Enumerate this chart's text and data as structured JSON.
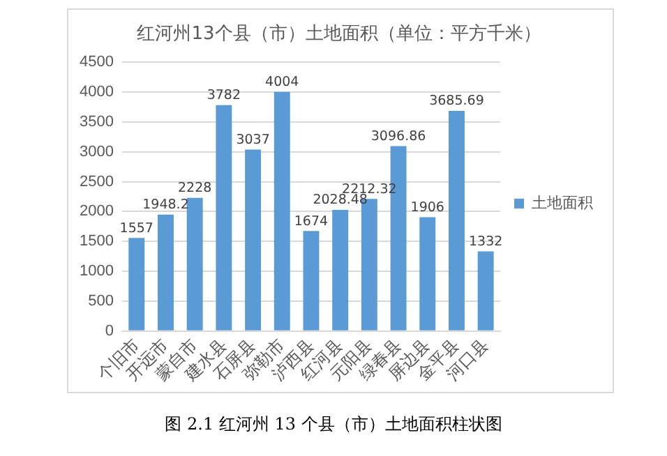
{
  "chart_data": {
    "type": "bar",
    "title": "红河州13个县（市）土地面积（单位：平方千米）",
    "categories": [
      "个旧市",
      "开远市",
      "蒙自市",
      "建水县",
      "石屏县",
      "弥勒市",
      "泸西县",
      "红河县",
      "元阳县",
      "绿春县",
      "屏边县",
      "金平县",
      "河口县"
    ],
    "series": [
      {
        "name": "土地面积",
        "color": "#5b9bd5",
        "values": [
          1557,
          1948.2,
          2228,
          3782,
          3037,
          4004,
          1674,
          2028.48,
          2212.32,
          3096.86,
          1906,
          3685.69,
          1332
        ]
      }
    ],
    "ylim": [
      0,
      4500
    ],
    "yticks": [
      0,
      500,
      1000,
      1500,
      2000,
      2500,
      3000,
      3500,
      4000,
      4500
    ],
    "grid": "y",
    "legend": "right",
    "data_labels": true,
    "annotations": [
      "图 2.1 红河州 13 个县（市）土地面积柱状图"
    ]
  }
}
